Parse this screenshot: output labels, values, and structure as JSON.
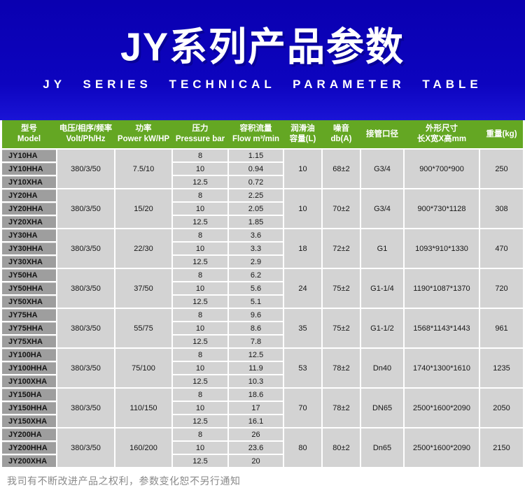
{
  "banner": {
    "title": "JY系列产品参数",
    "subtitle": "JY SERIES TECHNICAL PARAMETER TABLE"
  },
  "colors": {
    "banner_blue": "#0d04bf",
    "header_green": "#64a723",
    "model_cell_gray": "#9e9e9e",
    "data_cell_gray": "#d3d3d3",
    "text_dark": "#161616",
    "footer_gray": "#8a8a8a"
  },
  "table": {
    "columns": [
      {
        "zh": "型号",
        "en": "Model"
      },
      {
        "zh": "电压/相序/频率",
        "en": "Volt/Ph/Hz"
      },
      {
        "zh": "功率",
        "en": "Power kW/HP"
      },
      {
        "zh": "压力",
        "en": "Pressure bar"
      },
      {
        "zh": "容积流量",
        "en": "Flow m³/min"
      },
      {
        "zh": "润滑油",
        "en": "容量(L)"
      },
      {
        "zh": "噪音",
        "en": "db(A)"
      },
      {
        "zh": "接管口径",
        "en": ""
      },
      {
        "zh": "外形尺寸",
        "en": "长X宽X高mm"
      },
      {
        "zh": "重量(kg)",
        "en": ""
      }
    ],
    "groups": [
      {
        "models": [
          "JY10HA",
          "JY10HHA",
          "JY10XHA"
        ],
        "volt": "380/3/50",
        "power": "7.5/10",
        "pressure": [
          "8",
          "10",
          "12.5"
        ],
        "flow": [
          "1.15",
          "0.94",
          "0.72"
        ],
        "oil": "10",
        "noise": "68±2",
        "pipe": "G3/4",
        "dims": "900*700*900",
        "weight": "250"
      },
      {
        "models": [
          "JY20HA",
          "JY20HHA",
          "JY20XHA"
        ],
        "volt": "380/3/50",
        "power": "15/20",
        "pressure": [
          "8",
          "10",
          "12.5"
        ],
        "flow": [
          "2.25",
          "2.05",
          "1.85"
        ],
        "oil": "10",
        "noise": "70±2",
        "pipe": "G3/4",
        "dims": "900*730*1128",
        "weight": "308"
      },
      {
        "models": [
          "JY30HA",
          "JY30HHA",
          "JY30XHA"
        ],
        "volt": "380/3/50",
        "power": "22/30",
        "pressure": [
          "8",
          "10",
          "12.5"
        ],
        "flow": [
          "3.6",
          "3.3",
          "2.9"
        ],
        "oil": "18",
        "noise": "72±2",
        "pipe": "G1",
        "dims": "1093*910*1330",
        "weight": "470"
      },
      {
        "models": [
          "JY50HA",
          "JY50HHA",
          "JY50XHA"
        ],
        "volt": "380/3/50",
        "power": "37/50",
        "pressure": [
          "8",
          "10",
          "12.5"
        ],
        "flow": [
          "6.2",
          "5.6",
          "5.1"
        ],
        "oil": "24",
        "noise": "75±2",
        "pipe": "G1-1/4",
        "dims": "1190*1087*1370",
        "weight": "720"
      },
      {
        "models": [
          "JY75HA",
          "JY75HHA",
          "JY75XHA"
        ],
        "volt": "380/3/50",
        "power": "55/75",
        "pressure": [
          "8",
          "10",
          "12.5"
        ],
        "flow": [
          "9.6",
          "8.6",
          "7.8"
        ],
        "oil": "35",
        "noise": "75±2",
        "pipe": "G1-1/2",
        "dims": "1568*1143*1443",
        "weight": "961"
      },
      {
        "models": [
          "JY100HA",
          "JY100HHA",
          "JY100XHA"
        ],
        "volt": "380/3/50",
        "power": "75/100",
        "pressure": [
          "8",
          "10",
          "12.5"
        ],
        "flow": [
          "12.5",
          "11.9",
          "10.3"
        ],
        "oil": "53",
        "noise": "78±2",
        "pipe": "Dn40",
        "dims": "1740*1300*1610",
        "weight": "1235"
      },
      {
        "models": [
          "JY150HA",
          "JY150HHA",
          "JY150XHA"
        ],
        "volt": "380/3/50",
        "power": "110/150",
        "pressure": [
          "8",
          "10",
          "12.5"
        ],
        "flow": [
          "18.6",
          "17",
          "16.1"
        ],
        "oil": "70",
        "noise": "78±2",
        "pipe": "DN65",
        "dims": "2500*1600*2090",
        "weight": "2050"
      },
      {
        "models": [
          "JY200HA",
          "JY200HHA",
          "JY200XHA"
        ],
        "volt": "380/3/50",
        "power": "160/200",
        "pressure": [
          "8",
          "10",
          "12.5"
        ],
        "flow": [
          "26",
          "23.6",
          "20"
        ],
        "oil": "80",
        "noise": "80±2",
        "pipe": "Dn65",
        "dims": "2500*1600*2090",
        "weight": "2150"
      }
    ]
  },
  "footer": {
    "note": "我司有不断改进产品之权利，参数变化恕不另行通知"
  }
}
